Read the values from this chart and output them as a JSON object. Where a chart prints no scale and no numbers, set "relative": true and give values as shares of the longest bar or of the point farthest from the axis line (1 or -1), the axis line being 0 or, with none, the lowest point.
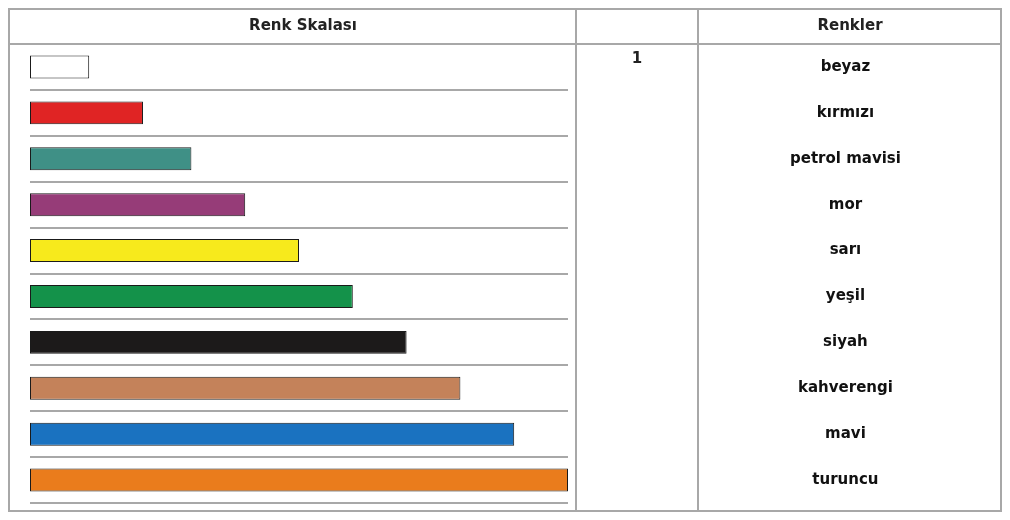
{
  "chart_data": {
    "type": "bar",
    "orientation": "horizontal",
    "relative": true,
    "title": "Renk Skalası",
    "categories": [
      "beyaz",
      "kırmızı",
      "petrol mavisi",
      "mor",
      "sarı",
      "yeşil",
      "siyah",
      "kahverengi",
      "mavi",
      "turuncu"
    ],
    "values": [
      0.11,
      0.21,
      0.3,
      0.4,
      0.5,
      0.6,
      0.7,
      0.8,
      0.9,
      1
    ],
    "colors": [
      "#ffffff",
      "#e02424",
      "#3f9086",
      "#963c78",
      "#f7ea1c",
      "#14924a",
      "#1c1a1a",
      "#c4825a",
      "#1a72c0",
      "#ea7c1c"
    ],
    "annotations": [
      "Renkler",
      "1"
    ],
    "grid": "y",
    "tick_labels": "y"
  }
}
